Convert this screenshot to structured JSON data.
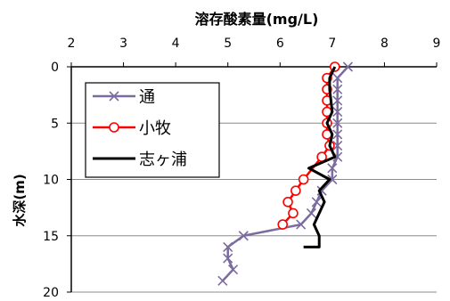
{
  "chart_data": {
    "type": "line",
    "title": "溶存酸素量(mg/L)",
    "xlabel": "溶存酸素量(mg/L)",
    "ylabel": "水深(m)",
    "xlim": [
      2,
      9
    ],
    "ylim": [
      0,
      20
    ],
    "x_axis_position": "top",
    "y_axis_inverted": true,
    "x_ticks": [
      "2",
      "3",
      "4",
      "5",
      "6",
      "7",
      "8",
      "9"
    ],
    "y_ticks": [
      "0",
      "5",
      "10",
      "15",
      "20"
    ],
    "grid": "horizontal",
    "legend_position": "top-left",
    "series": [
      {
        "name": "通",
        "color": "#7b6b9f",
        "marker": "x",
        "points": [
          {
            "x": 7.3,
            "y": 0
          },
          {
            "x": 7.1,
            "y": 1
          },
          {
            "x": 7.1,
            "y": 2
          },
          {
            "x": 7.1,
            "y": 3
          },
          {
            "x": 7.1,
            "y": 4
          },
          {
            "x": 7.1,
            "y": 5
          },
          {
            "x": 7.1,
            "y": 6
          },
          {
            "x": 7.1,
            "y": 7
          },
          {
            "x": 7.1,
            "y": 8
          },
          {
            "x": 7.0,
            "y": 9
          },
          {
            "x": 7.0,
            "y": 10
          },
          {
            "x": 6.8,
            "y": 11
          },
          {
            "x": 6.7,
            "y": 12
          },
          {
            "x": 6.6,
            "y": 13
          },
          {
            "x": 6.4,
            "y": 14
          },
          {
            "x": 5.3,
            "y": 15
          },
          {
            "x": 5.0,
            "y": 16
          },
          {
            "x": 5.0,
            "y": 17
          },
          {
            "x": 5.1,
            "y": 18
          },
          {
            "x": 4.9,
            "y": 19
          }
        ]
      },
      {
        "name": "小牧",
        "color": "#ff0000",
        "marker": "circle",
        "points": [
          {
            "x": 7.05,
            "y": 0
          },
          {
            "x": 6.9,
            "y": 1
          },
          {
            "x": 6.9,
            "y": 2
          },
          {
            "x": 6.9,
            "y": 3
          },
          {
            "x": 6.9,
            "y": 4
          },
          {
            "x": 6.9,
            "y": 5
          },
          {
            "x": 6.9,
            "y": 6
          },
          {
            "x": 6.95,
            "y": 7
          },
          {
            "x": 6.8,
            "y": 8
          },
          {
            "x": 6.45,
            "y": 10
          },
          {
            "x": 6.3,
            "y": 11
          },
          {
            "x": 6.15,
            "y": 12
          },
          {
            "x": 6.25,
            "y": 13
          },
          {
            "x": 6.05,
            "y": 14
          }
        ]
      },
      {
        "name": "志ヶ浦",
        "color": "#000000",
        "marker": "none",
        "points": [
          {
            "x": 7.05,
            "y": 0
          },
          {
            "x": 6.95,
            "y": 1
          },
          {
            "x": 6.95,
            "y": 2
          },
          {
            "x": 7.0,
            "y": 4
          },
          {
            "x": 6.9,
            "y": 5
          },
          {
            "x": 7.0,
            "y": 6
          },
          {
            "x": 6.95,
            "y": 7
          },
          {
            "x": 7.05,
            "y": 8
          },
          {
            "x": 6.55,
            "y": 9
          },
          {
            "x": 6.95,
            "y": 10
          },
          {
            "x": 6.75,
            "y": 11
          },
          {
            "x": 6.85,
            "y": 12
          },
          {
            "x": 6.65,
            "y": 14
          },
          {
            "x": 6.75,
            "y": 15
          },
          {
            "x": 6.75,
            "y": 16
          },
          {
            "x": 6.45,
            "y": 16
          }
        ]
      }
    ]
  }
}
